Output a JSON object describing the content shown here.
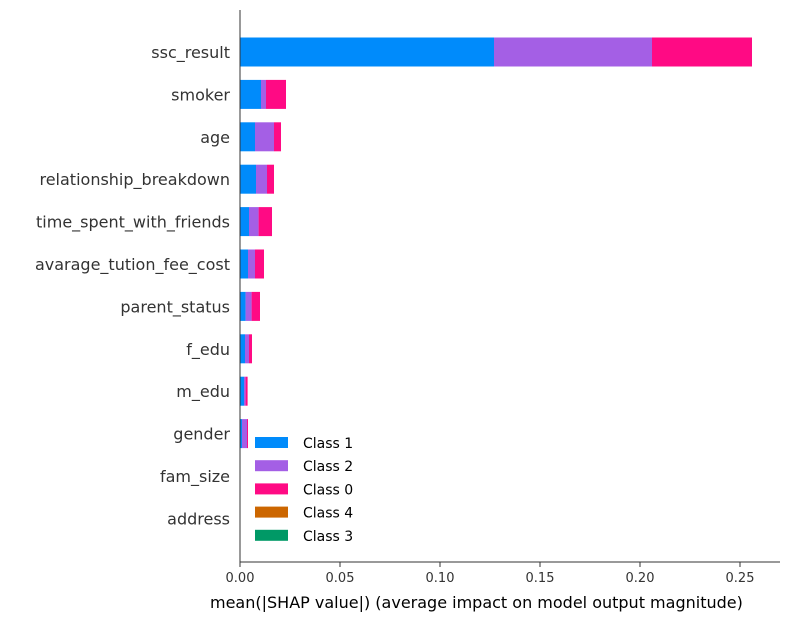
{
  "chart_data": {
    "type": "bar",
    "orientation": "horizontal",
    "stacked": true,
    "title": "",
    "xlabel": "mean(|SHAP value|) (average impact on model output magnitude)",
    "ylabel": "",
    "xlim": [
      0,
      0.27
    ],
    "xticks": [
      "0.00",
      "0.05",
      "0.10",
      "0.15",
      "0.20",
      "0.25"
    ],
    "grid": false,
    "legend_position": "bottom-center",
    "categories": [
      "ssc_result",
      "smoker",
      "age",
      "relationship_breakdown",
      "time_spent_with_friends",
      "avarage_tution_fee_cost",
      "parent_status",
      "f_edu",
      "m_edu",
      "gender",
      "fam_size",
      "address"
    ],
    "series": [
      {
        "name": "Class 1",
        "color": "#008bfb",
        "values": [
          0.127,
          0.0105,
          0.0075,
          0.008,
          0.0045,
          0.004,
          0.0028,
          0.0025,
          0.002,
          0.001,
          0.0,
          0.0
        ]
      },
      {
        "name": "Class 2",
        "color": "#a45fe5",
        "values": [
          0.079,
          0.0025,
          0.0095,
          0.0055,
          0.0048,
          0.0035,
          0.003,
          0.002,
          0.0008,
          0.0025,
          0.0,
          0.0
        ]
      },
      {
        "name": "Class 0",
        "color": "#ff0a84",
        "values": [
          0.05,
          0.01,
          0.0035,
          0.0035,
          0.0067,
          0.0045,
          0.0042,
          0.0015,
          0.001,
          0.0005,
          0.0,
          0.0
        ]
      },
      {
        "name": "Class 4",
        "color": "#cc6600",
        "values": [
          0,
          0,
          0,
          0,
          0,
          0,
          0,
          0,
          0,
          0,
          0,
          0
        ]
      },
      {
        "name": "Class 3",
        "color": "#009966",
        "values": [
          0,
          0,
          0,
          0,
          0,
          0,
          0,
          0,
          0,
          0,
          0,
          0
        ]
      }
    ],
    "legend_order": [
      "Class 1",
      "Class 2",
      "Class 0",
      "Class 4",
      "Class 3"
    ]
  }
}
